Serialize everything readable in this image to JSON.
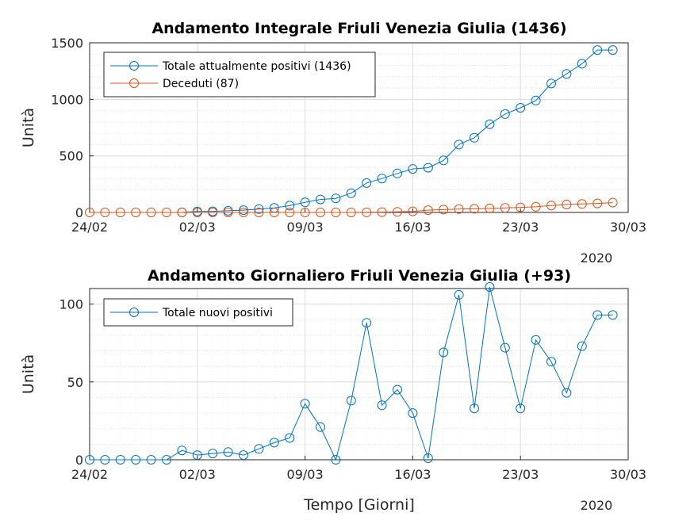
{
  "chart_data": [
    {
      "type": "line",
      "title": "Andamento Integrale Friuli Venezia Giulia (1436)",
      "ylabel": "Unità",
      "xlabel": "",
      "x_axis": {
        "type": "date",
        "range": [
          "2020-02-24",
          "2020-03-30"
        ],
        "ticks": [
          "24/02",
          "02/03",
          "09/03",
          "16/03",
          "23/03",
          "30/03"
        ],
        "year_label": "2020"
      },
      "ylim": [
        0,
        1500
      ],
      "yticks": [
        0,
        500,
        1000,
        1500
      ],
      "grid": true,
      "minor_grid": true,
      "legend": "top-left",
      "series": [
        {
          "name": "Totale attualmente positivi (1436)",
          "color": "#0072BD",
          "x": [
            "2020-03-01",
            "2020-03-02",
            "2020-03-03",
            "2020-03-04",
            "2020-03-05",
            "2020-03-06",
            "2020-03-07",
            "2020-03-08",
            "2020-03-09",
            "2020-03-10",
            "2020-03-11",
            "2020-03-12",
            "2020-03-13",
            "2020-03-14",
            "2020-03-15",
            "2020-03-16",
            "2020-03-17",
            "2020-03-18",
            "2020-03-19",
            "2020-03-20",
            "2020-03-21",
            "2020-03-22",
            "2020-03-23",
            "2020-03-24",
            "2020-03-25",
            "2020-03-26",
            "2020-03-27",
            "2020-03-28",
            "2020-03-29"
          ],
          "values": [
            1,
            9,
            10,
            15,
            20,
            30,
            40,
            60,
            90,
            115,
            125,
            170,
            260,
            300,
            345,
            385,
            395,
            460,
            600,
            660,
            780,
            870,
            925,
            990,
            1140,
            1225,
            1315,
            1436,
            1436
          ]
        },
        {
          "name": "Deceduti (87)",
          "color": "#D95319",
          "x": [
            "2020-02-24",
            "2020-02-25",
            "2020-02-26",
            "2020-02-27",
            "2020-02-28",
            "2020-02-29",
            "2020-03-01",
            "2020-03-02",
            "2020-03-03",
            "2020-03-04",
            "2020-03-05",
            "2020-03-06",
            "2020-03-07",
            "2020-03-08",
            "2020-03-09",
            "2020-03-10",
            "2020-03-11",
            "2020-03-12",
            "2020-03-13",
            "2020-03-14",
            "2020-03-15",
            "2020-03-16",
            "2020-03-17",
            "2020-03-18",
            "2020-03-19",
            "2020-03-20",
            "2020-03-21",
            "2020-03-22",
            "2020-03-23",
            "2020-03-24",
            "2020-03-25",
            "2020-03-26",
            "2020-03-27",
            "2020-03-28",
            "2020-03-29"
          ],
          "values": [
            0,
            0,
            0,
            0,
            0,
            0,
            0,
            0,
            0,
            0,
            0,
            0,
            0,
            0,
            0,
            0,
            0,
            0,
            1,
            3,
            5,
            10,
            20,
            25,
            30,
            32,
            35,
            40,
            45,
            50,
            62,
            70,
            75,
            80,
            87
          ]
        }
      ]
    },
    {
      "type": "line",
      "title": "Andamento Giornaliero Friuli Venezia Giulia (+93)",
      "ylabel": "Unità",
      "xlabel": "Tempo [Giorni]",
      "x_axis": {
        "type": "date",
        "range": [
          "2020-02-24",
          "2020-03-30"
        ],
        "ticks": [
          "24/02",
          "02/03",
          "09/03",
          "16/03",
          "23/03",
          "30/03"
        ],
        "year_label": "2020"
      },
      "ylim": [
        0,
        110
      ],
      "yticks": [
        0,
        50,
        100
      ],
      "grid": true,
      "minor_grid": true,
      "legend": "top-left",
      "series": [
        {
          "name": "Totale nuovi positivi",
          "color": "#0072BD",
          "x": [
            "2020-02-24",
            "2020-02-25",
            "2020-02-26",
            "2020-02-27",
            "2020-02-28",
            "2020-02-29",
            "2020-03-01",
            "2020-03-02",
            "2020-03-03",
            "2020-03-04",
            "2020-03-05",
            "2020-03-06",
            "2020-03-07",
            "2020-03-08",
            "2020-03-09",
            "2020-03-10",
            "2020-03-11",
            "2020-03-12",
            "2020-03-13",
            "2020-03-14",
            "2020-03-15",
            "2020-03-16",
            "2020-03-17",
            "2020-03-18",
            "2020-03-19",
            "2020-03-20",
            "2020-03-21",
            "2020-03-22",
            "2020-03-23",
            "2020-03-24",
            "2020-03-25",
            "2020-03-26",
            "2020-03-27",
            "2020-03-28",
            "2020-03-29"
          ],
          "values": [
            0,
            0,
            0,
            0,
            0,
            0,
            6,
            3,
            4,
            5,
            3,
            7,
            11,
            14,
            36,
            21,
            0,
            38,
            88,
            35,
            45,
            30,
            1,
            69,
            106,
            33,
            111,
            72,
            33,
            77,
            63,
            43,
            73,
            93,
            93
          ]
        }
      ]
    }
  ]
}
